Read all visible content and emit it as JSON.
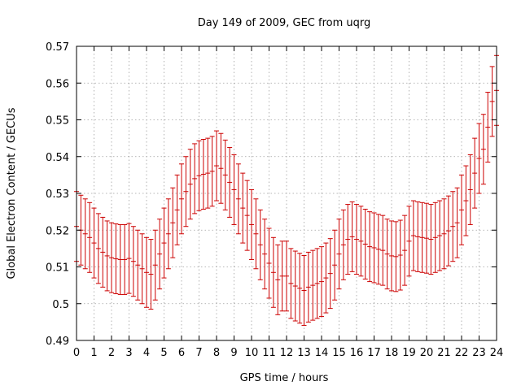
{
  "chart_data": {
    "type": "errorbar",
    "title": "Day 149 of 2009, GEC from uqrg",
    "xlabel": "GPS time / hours",
    "ylabel": "Global Electron Content / GECUs",
    "xlim": [
      0,
      24
    ],
    "ylim": [
      0.49,
      0.57
    ],
    "xticks": [
      0,
      1,
      2,
      3,
      4,
      5,
      6,
      7,
      8,
      9,
      10,
      11,
      12,
      13,
      14,
      15,
      16,
      17,
      18,
      19,
      20,
      21,
      22,
      23,
      24
    ],
    "yticks": [
      0.49,
      0.5,
      0.51,
      0.52,
      0.53,
      0.54,
      0.55,
      0.56,
      0.57
    ],
    "ytick_labels": [
      "0.49",
      "0.5",
      "0.51",
      "0.52",
      "0.53",
      "0.54",
      "0.55",
      "0.56",
      "0.57"
    ],
    "grid": true,
    "color": "#cc0000",
    "error": 0.0095,
    "x": [
      0,
      0.25,
      0.5,
      0.75,
      1,
      1.25,
      1.5,
      1.75,
      2,
      2.25,
      2.5,
      2.75,
      3,
      3.25,
      3.5,
      3.75,
      4,
      4.25,
      4.5,
      4.75,
      5,
      5.25,
      5.5,
      5.75,
      6,
      6.25,
      6.5,
      6.75,
      7,
      7.25,
      7.5,
      7.75,
      8,
      8.25,
      8.5,
      8.75,
      9,
      9.25,
      9.5,
      9.75,
      10,
      10.25,
      10.5,
      10.75,
      11,
      11.25,
      11.5,
      11.75,
      12,
      12.25,
      12.5,
      12.75,
      13,
      13.25,
      13.5,
      13.75,
      14,
      14.25,
      14.5,
      14.75,
      15,
      15.25,
      15.5,
      15.75,
      16,
      16.25,
      16.5,
      16.75,
      17,
      17.25,
      17.5,
      17.75,
      18,
      18.25,
      18.5,
      18.75,
      19,
      19.25,
      19.5,
      19.75,
      20,
      20.25,
      20.5,
      20.75,
      21,
      21.25,
      21.5,
      21.75,
      22,
      22.25,
      22.5,
      22.75,
      23,
      23.25,
      23.5,
      23.75,
      24
    ],
    "y": [
      0.521,
      0.52,
      0.519,
      0.518,
      0.5165,
      0.515,
      0.514,
      0.513,
      0.5125,
      0.5122,
      0.512,
      0.512,
      0.5123,
      0.5115,
      0.5105,
      0.5095,
      0.5085,
      0.508,
      0.5105,
      0.5135,
      0.5165,
      0.519,
      0.522,
      0.5255,
      0.5285,
      0.5305,
      0.5325,
      0.534,
      0.5348,
      0.5352,
      0.5355,
      0.536,
      0.5375,
      0.5368,
      0.535,
      0.533,
      0.531,
      0.5285,
      0.526,
      0.524,
      0.5215,
      0.519,
      0.516,
      0.5135,
      0.511,
      0.5085,
      0.5065,
      0.5075,
      0.5075,
      0.5055,
      0.5048,
      0.5042,
      0.5036,
      0.5045,
      0.505,
      0.5055,
      0.506,
      0.507,
      0.5082,
      0.5105,
      0.5135,
      0.516,
      0.5175,
      0.5182,
      0.5175,
      0.517,
      0.5162,
      0.5155,
      0.5152,
      0.5148,
      0.5145,
      0.5135,
      0.513,
      0.5128,
      0.5132,
      0.5145,
      0.517,
      0.5185,
      0.5182,
      0.518,
      0.5178,
      0.5175,
      0.518,
      0.5185,
      0.519,
      0.5198,
      0.521,
      0.522,
      0.5255,
      0.528,
      0.531,
      0.5355,
      0.5395,
      0.542,
      0.548,
      0.555,
      0.558
    ]
  }
}
